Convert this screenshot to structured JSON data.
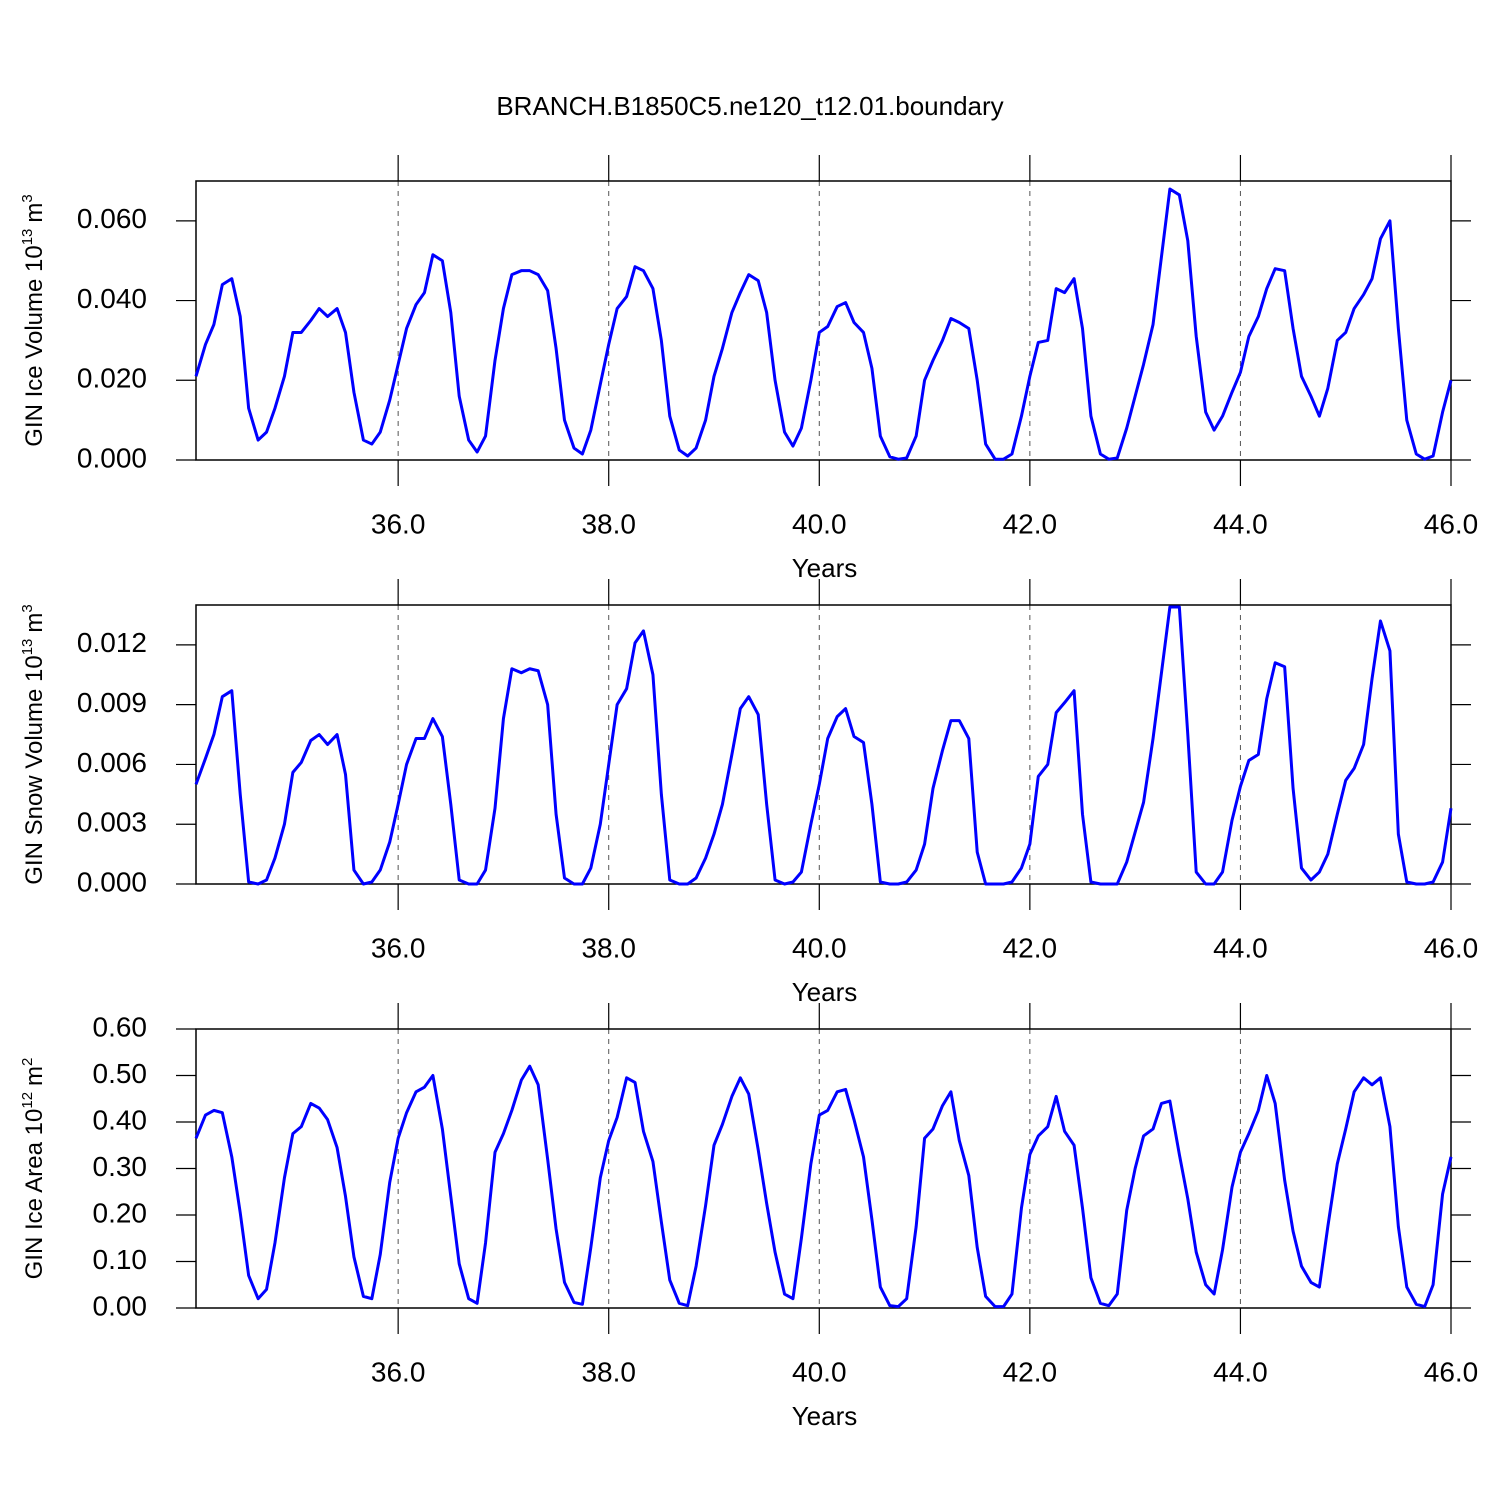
{
  "title": "BRANCH.B1850C5.ne120_t12.01.boundary",
  "chart_data": [
    {
      "type": "line",
      "color": "#0000ff",
      "xlabel": "Years",
      "ylabel": {
        "text": "GIN Ice Volume 10",
        "exp": "13",
        "unit": "m",
        "unit_exp": "3"
      },
      "xlim": [
        34.08,
        46
      ],
      "ylim": [
        0,
        0.07
      ],
      "xticks": [
        {
          "value": 36,
          "label": "36.0"
        },
        {
          "value": 38,
          "label": "38.0"
        },
        {
          "value": 40,
          "label": "40.0"
        },
        {
          "value": 42,
          "label": "42.0"
        },
        {
          "value": 44,
          "label": "44.0"
        },
        {
          "value": 46,
          "label": "46.0"
        }
      ],
      "yticks": [
        {
          "value": 0,
          "label": "0.000"
        },
        {
          "value": 0.02,
          "label": "0.020"
        },
        {
          "value": 0.04,
          "label": "0.040"
        },
        {
          "value": 0.06,
          "label": "0.060"
        }
      ],
      "grid": "x",
      "x": [
        34.08,
        34.17,
        34.25,
        34.33,
        34.42,
        34.5,
        34.58,
        34.67,
        34.75,
        34.83,
        34.92,
        35,
        35.08,
        35.17,
        35.25,
        35.33,
        35.42,
        35.5,
        35.58,
        35.67,
        35.75,
        35.83,
        35.92,
        36,
        36.08,
        36.17,
        36.25,
        36.33,
        36.42,
        36.5,
        36.58,
        36.67,
        36.75,
        36.83,
        36.92,
        37,
        37.08,
        37.17,
        37.25,
        37.33,
        37.42,
        37.5,
        37.58,
        37.67,
        37.75,
        37.83,
        37.92,
        38,
        38.08,
        38.17,
        38.25,
        38.33,
        38.42,
        38.5,
        38.58,
        38.67,
        38.75,
        38.83,
        38.92,
        39,
        39.08,
        39.17,
        39.25,
        39.33,
        39.42,
        39.5,
        39.58,
        39.67,
        39.75,
        39.83,
        39.92,
        40,
        40.08,
        40.17,
        40.25,
        40.33,
        40.42,
        40.5,
        40.58,
        40.67,
        40.75,
        40.83,
        40.92,
        41,
        41.08,
        41.17,
        41.25,
        41.33,
        41.42,
        41.5,
        41.58,
        41.67,
        41.75,
        41.83,
        41.92,
        42,
        42.08,
        42.17,
        42.25,
        42.33,
        42.42,
        42.5,
        42.58,
        42.67,
        42.75,
        42.83,
        42.92,
        43,
        43.08,
        43.17,
        43.25,
        43.33,
        43.42,
        43.5,
        43.58,
        43.67,
        43.75,
        43.83,
        43.92,
        44,
        44.08,
        44.17,
        44.25,
        44.33,
        44.42,
        44.5,
        44.58,
        44.67,
        44.75,
        44.83,
        44.92,
        45,
        45.08,
        45.17,
        45.25,
        45.33,
        45.42,
        45.5,
        45.58,
        45.67,
        45.75,
        45.83,
        45.92,
        46
      ],
      "values": [
        0.021,
        0.029,
        0.034,
        0.044,
        0.0455,
        0.036,
        0.013,
        0.005,
        0.007,
        0.013,
        0.021,
        0.032,
        0.032,
        0.035,
        0.038,
        0.036,
        0.038,
        0.032,
        0.017,
        0.005,
        0.004,
        0.007,
        0.015,
        0.024,
        0.033,
        0.039,
        0.042,
        0.0515,
        0.05,
        0.037,
        0.016,
        0.005,
        0.002,
        0.006,
        0.025,
        0.038,
        0.0465,
        0.0475,
        0.0475,
        0.0465,
        0.0425,
        0.028,
        0.01,
        0.003,
        0.0015,
        0.0075,
        0.019,
        0.029,
        0.038,
        0.041,
        0.0485,
        0.0475,
        0.043,
        0.03,
        0.011,
        0.0025,
        0.001,
        0.003,
        0.01,
        0.021,
        0.028,
        0.037,
        0.042,
        0.0465,
        0.045,
        0.037,
        0.02,
        0.007,
        0.0035,
        0.008,
        0.02,
        0.032,
        0.0335,
        0.0385,
        0.0395,
        0.0345,
        0.032,
        0.023,
        0.006,
        0.0008,
        0.0002,
        0.0005,
        0.006,
        0.02,
        0.025,
        0.03,
        0.0355,
        0.0345,
        0.033,
        0.02,
        0.004,
        0.0002,
        0.0002,
        0.0015,
        0.011,
        0.021,
        0.0295,
        0.03,
        0.043,
        0.042,
        0.0455,
        0.033,
        0.011,
        0.0015,
        0.0002,
        0.0005,
        0.008,
        0.016,
        0.024,
        0.034,
        0.051,
        0.068,
        0.0665,
        0.055,
        0.031,
        0.012,
        0.0075,
        0.011,
        0.017,
        0.022,
        0.031,
        0.036,
        0.043,
        0.048,
        0.0475,
        0.033,
        0.021,
        0.016,
        0.011,
        0.018,
        0.03,
        0.032,
        0.038,
        0.0415,
        0.0455,
        0.0555,
        0.06,
        0.033,
        0.01,
        0.0015,
        0.0002,
        0.001,
        0.012,
        0.02
      ]
    },
    {
      "type": "line",
      "color": "#0000ff",
      "xlabel": "Years",
      "ylabel": {
        "text": "GIN Snow Volume 10",
        "exp": "13",
        "unit": "m",
        "unit_exp": "3"
      },
      "xlim": [
        34.08,
        46
      ],
      "ylim": [
        0,
        0.014
      ],
      "xticks": [
        {
          "value": 36,
          "label": "36.0"
        },
        {
          "value": 38,
          "label": "38.0"
        },
        {
          "value": 40,
          "label": "40.0"
        },
        {
          "value": 42,
          "label": "42.0"
        },
        {
          "value": 44,
          "label": "44.0"
        },
        {
          "value": 46,
          "label": "46.0"
        }
      ],
      "yticks": [
        {
          "value": 0,
          "label": "0.000"
        },
        {
          "value": 0.003,
          "label": "0.003"
        },
        {
          "value": 0.006,
          "label": "0.006"
        },
        {
          "value": 0.009,
          "label": "0.009"
        },
        {
          "value": 0.012,
          "label": "0.012"
        }
      ],
      "grid": "x",
      "x": [
        34.08,
        34.17,
        34.25,
        34.33,
        34.42,
        34.5,
        34.58,
        34.67,
        34.75,
        34.83,
        34.92,
        35,
        35.08,
        35.17,
        35.25,
        35.33,
        35.42,
        35.5,
        35.58,
        35.67,
        35.75,
        35.83,
        35.92,
        36,
        36.08,
        36.17,
        36.25,
        36.33,
        36.42,
        36.5,
        36.58,
        36.67,
        36.75,
        36.83,
        36.92,
        37,
        37.08,
        37.17,
        37.25,
        37.33,
        37.42,
        37.5,
        37.58,
        37.67,
        37.75,
        37.83,
        37.92,
        38,
        38.08,
        38.17,
        38.25,
        38.33,
        38.42,
        38.5,
        38.58,
        38.67,
        38.75,
        38.83,
        38.92,
        39,
        39.08,
        39.17,
        39.25,
        39.33,
        39.42,
        39.5,
        39.58,
        39.67,
        39.75,
        39.83,
        39.92,
        40,
        40.08,
        40.17,
        40.25,
        40.33,
        40.42,
        40.5,
        40.58,
        40.67,
        40.75,
        40.83,
        40.92,
        41,
        41.08,
        41.17,
        41.25,
        41.33,
        41.42,
        41.5,
        41.58,
        41.67,
        41.75,
        41.83,
        41.92,
        42,
        42.08,
        42.17,
        42.25,
        42.33,
        42.42,
        42.5,
        42.58,
        42.67,
        42.75,
        42.83,
        42.92,
        43,
        43.08,
        43.17,
        43.25,
        43.33,
        43.42,
        43.5,
        43.58,
        43.67,
        43.75,
        43.83,
        43.92,
        44,
        44.08,
        44.17,
        44.25,
        44.33,
        44.42,
        44.5,
        44.58,
        44.67,
        44.75,
        44.83,
        44.92,
        45,
        45.08,
        45.17,
        45.25,
        45.33,
        45.42,
        45.5,
        45.58,
        45.67,
        45.75,
        45.83,
        45.92,
        46
      ],
      "values": [
        0.005,
        0.0063,
        0.0075,
        0.0094,
        0.0097,
        0.0045,
        0.0001,
        0,
        0.0002,
        0.0013,
        0.003,
        0.0056,
        0.0061,
        0.0072,
        0.0075,
        0.007,
        0.0075,
        0.0055,
        0.0007,
        0,
        0.0001,
        0.0007,
        0.0021,
        0.004,
        0.006,
        0.0073,
        0.0073,
        0.0083,
        0.0074,
        0.004,
        0.0002,
        0,
        0,
        0.0007,
        0.0038,
        0.0083,
        0.0108,
        0.0106,
        0.0108,
        0.0107,
        0.009,
        0.0035,
        0.0003,
        0,
        0,
        0.0008,
        0.003,
        0.006,
        0.009,
        0.0098,
        0.0121,
        0.0127,
        0.0105,
        0.0045,
        0.0002,
        0,
        0,
        0.0003,
        0.0013,
        0.0025,
        0.004,
        0.0065,
        0.0088,
        0.0094,
        0.0085,
        0.004,
        0.0002,
        0,
        0.0001,
        0.0006,
        0.003,
        0.005,
        0.0073,
        0.0084,
        0.0088,
        0.0074,
        0.0071,
        0.004,
        0.0001,
        0,
        0,
        0.0001,
        0.0007,
        0.002,
        0.0048,
        0.0067,
        0.0082,
        0.0082,
        0.0073,
        0.0016,
        0,
        0,
        0,
        0.0001,
        0.0008,
        0.002,
        0.0054,
        0.006,
        0.0086,
        0.0091,
        0.0097,
        0.0035,
        0.0001,
        0,
        0,
        0,
        0.0011,
        0.0026,
        0.0041,
        0.0073,
        0.0106,
        0.0139,
        0.0139,
        0.0075,
        0.0006,
        0,
        0,
        0.0006,
        0.0032,
        0.0049,
        0.0062,
        0.0065,
        0.0093,
        0.0111,
        0.0109,
        0.0048,
        0.0008,
        0.0002,
        0.0006,
        0.0015,
        0.0035,
        0.0052,
        0.0058,
        0.007,
        0.0103,
        0.0132,
        0.0117,
        0.0025,
        0.0001,
        0,
        0,
        0.0001,
        0.0011,
        0.0038
      ]
    },
    {
      "type": "line",
      "color": "#0000ff",
      "xlabel": "Years",
      "ylabel": {
        "text": "GIN Ice Area 10",
        "exp": "12",
        "unit": "m",
        "unit_exp": "2"
      },
      "xlim": [
        34.08,
        46
      ],
      "ylim": [
        0,
        0.6
      ],
      "xticks": [
        {
          "value": 36,
          "label": "36.0"
        },
        {
          "value": 38,
          "label": "38.0"
        },
        {
          "value": 40,
          "label": "40.0"
        },
        {
          "value": 42,
          "label": "42.0"
        },
        {
          "value": 44,
          "label": "44.0"
        },
        {
          "value": 46,
          "label": "46.0"
        }
      ],
      "yticks": [
        {
          "value": 0,
          "label": "0.00"
        },
        {
          "value": 0.1,
          "label": "0.10"
        },
        {
          "value": 0.2,
          "label": "0.20"
        },
        {
          "value": 0.3,
          "label": "0.30"
        },
        {
          "value": 0.4,
          "label": "0.40"
        },
        {
          "value": 0.5,
          "label": "0.50"
        },
        {
          "value": 0.6,
          "label": "0.60"
        }
      ],
      "grid": "x",
      "x": [
        34.08,
        34.17,
        34.25,
        34.33,
        34.42,
        34.5,
        34.58,
        34.67,
        34.75,
        34.83,
        34.92,
        35,
        35.08,
        35.17,
        35.25,
        35.33,
        35.42,
        35.5,
        35.58,
        35.67,
        35.75,
        35.83,
        35.92,
        36,
        36.08,
        36.17,
        36.25,
        36.33,
        36.42,
        36.5,
        36.58,
        36.67,
        36.75,
        36.83,
        36.92,
        37,
        37.08,
        37.17,
        37.25,
        37.33,
        37.42,
        37.5,
        37.58,
        37.67,
        37.75,
        37.83,
        37.92,
        38,
        38.08,
        38.17,
        38.25,
        38.33,
        38.42,
        38.5,
        38.58,
        38.67,
        38.75,
        38.83,
        38.92,
        39,
        39.08,
        39.17,
        39.25,
        39.33,
        39.42,
        39.5,
        39.58,
        39.67,
        39.75,
        39.83,
        39.92,
        40,
        40.08,
        40.17,
        40.25,
        40.33,
        40.42,
        40.5,
        40.58,
        40.67,
        40.75,
        40.83,
        40.92,
        41,
        41.08,
        41.17,
        41.25,
        41.33,
        41.42,
        41.5,
        41.58,
        41.67,
        41.75,
        41.83,
        41.92,
        42,
        42.08,
        42.17,
        42.25,
        42.33,
        42.42,
        42.5,
        42.58,
        42.67,
        42.75,
        42.83,
        42.92,
        43,
        43.08,
        43.17,
        43.25,
        43.33,
        43.42,
        43.5,
        43.58,
        43.67,
        43.75,
        43.83,
        43.92,
        44,
        44.08,
        44.17,
        44.25,
        44.33,
        44.42,
        44.5,
        44.58,
        44.67,
        44.75,
        44.83,
        44.92,
        45,
        45.08,
        45.17,
        45.25,
        45.33,
        45.42,
        45.5,
        45.58,
        45.67,
        45.75,
        45.83,
        45.92,
        46
      ],
      "values": [
        0.365,
        0.415,
        0.425,
        0.42,
        0.325,
        0.205,
        0.07,
        0.02,
        0.04,
        0.14,
        0.28,
        0.375,
        0.39,
        0.44,
        0.43,
        0.405,
        0.345,
        0.24,
        0.11,
        0.025,
        0.02,
        0.115,
        0.27,
        0.365,
        0.42,
        0.465,
        0.475,
        0.5,
        0.385,
        0.24,
        0.095,
        0.02,
        0.01,
        0.14,
        0.335,
        0.375,
        0.425,
        0.49,
        0.52,
        0.48,
        0.32,
        0.17,
        0.055,
        0.012,
        0.008,
        0.13,
        0.28,
        0.36,
        0.41,
        0.495,
        0.485,
        0.38,
        0.315,
        0.185,
        0.06,
        0.01,
        0.005,
        0.09,
        0.22,
        0.35,
        0.395,
        0.455,
        0.495,
        0.46,
        0.34,
        0.225,
        0.12,
        0.03,
        0.02,
        0.15,
        0.31,
        0.415,
        0.425,
        0.465,
        0.47,
        0.405,
        0.325,
        0.19,
        0.045,
        0.005,
        0.003,
        0.02,
        0.175,
        0.365,
        0.385,
        0.435,
        0.465,
        0.36,
        0.285,
        0.13,
        0.025,
        0.003,
        0.003,
        0.03,
        0.215,
        0.33,
        0.37,
        0.39,
        0.455,
        0.38,
        0.35,
        0.215,
        0.065,
        0.01,
        0.005,
        0.03,
        0.21,
        0.3,
        0.37,
        0.385,
        0.44,
        0.445,
        0.33,
        0.235,
        0.12,
        0.05,
        0.03,
        0.125,
        0.26,
        0.335,
        0.375,
        0.425,
        0.5,
        0.44,
        0.275,
        0.165,
        0.09,
        0.055,
        0.045,
        0.175,
        0.31,
        0.385,
        0.465,
        0.495,
        0.48,
        0.495,
        0.39,
        0.175,
        0.045,
        0.008,
        0.003,
        0.05,
        0.245,
        0.325
      ]
    }
  ]
}
